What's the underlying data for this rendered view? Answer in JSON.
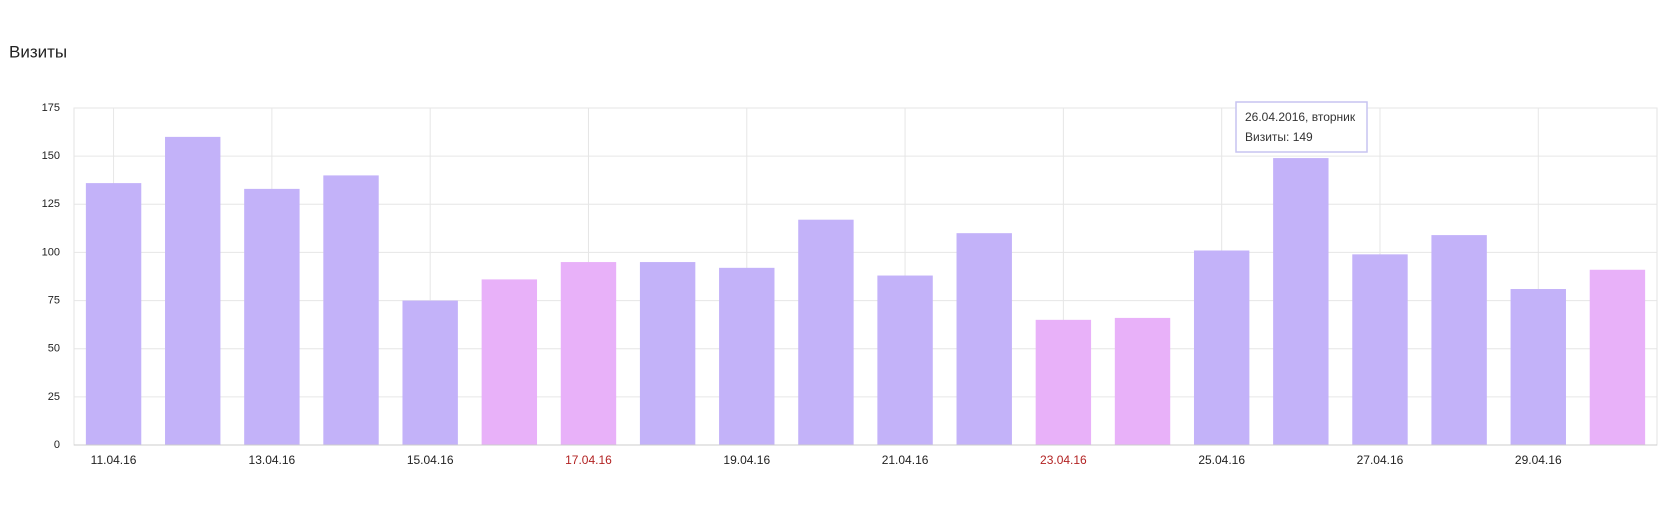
{
  "chart_data": {
    "type": "bar",
    "title": "Визиты",
    "categories": [
      "11.04.16",
      null,
      "13.04.16",
      null,
      "15.04.16",
      null,
      "17.04.16",
      null,
      "19.04.16",
      null,
      "21.04.16",
      null,
      "23.04.16",
      null,
      "25.04.16",
      null,
      "27.04.16",
      null,
      "29.04.16",
      null
    ],
    "values": [
      136,
      160,
      133,
      140,
      75,
      86,
      95,
      95,
      92,
      117,
      88,
      110,
      65,
      66,
      101,
      149,
      99,
      109,
      81,
      91
    ],
    "colors": [
      "#c3b2f9",
      "#c3b2f9",
      "#c3b2f9",
      "#c3b2f9",
      "#c3b2f9",
      "#e8b1f9",
      "#e8b1f9",
      "#c3b2f9",
      "#c3b2f9",
      "#c3b2f9",
      "#c3b2f9",
      "#c3b2f9",
      "#e8b1f9",
      "#e8b1f9",
      "#c3b2f9",
      "#c3b2f9",
      "#c3b2f9",
      "#c3b2f9",
      "#c3b2f9",
      "#e8b1f9"
    ],
    "label_colors": [
      "#222",
      "#222",
      "#222",
      "#222",
      "#222",
      "#222",
      "#b22222",
      "#222",
      "#222",
      "#222",
      "#222",
      "#222",
      "#b22222",
      "#222",
      "#222",
      "#222",
      "#222",
      "#222",
      "#222",
      "#222"
    ],
    "ylim": [
      0,
      175
    ],
    "yticks": [
      0,
      25,
      50,
      75,
      100,
      125,
      150,
      175
    ],
    "grid": true,
    "tooltip": {
      "title": "26.04.2016, вторник",
      "label": "Визиты: 149"
    }
  }
}
